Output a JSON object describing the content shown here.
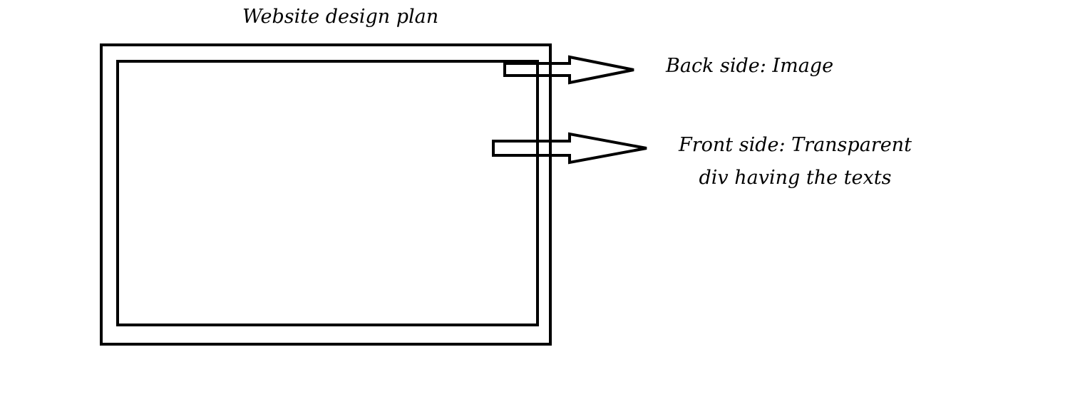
{
  "diagram": {
    "title": "Website design plan",
    "back_label": "Back side: Image",
    "front_label_line1": "Front side: Transparent",
    "front_label_line2": "div having the texts",
    "colors": {
      "stroke": "#000000",
      "background": "#ffffff",
      "text": "#000000"
    }
  }
}
